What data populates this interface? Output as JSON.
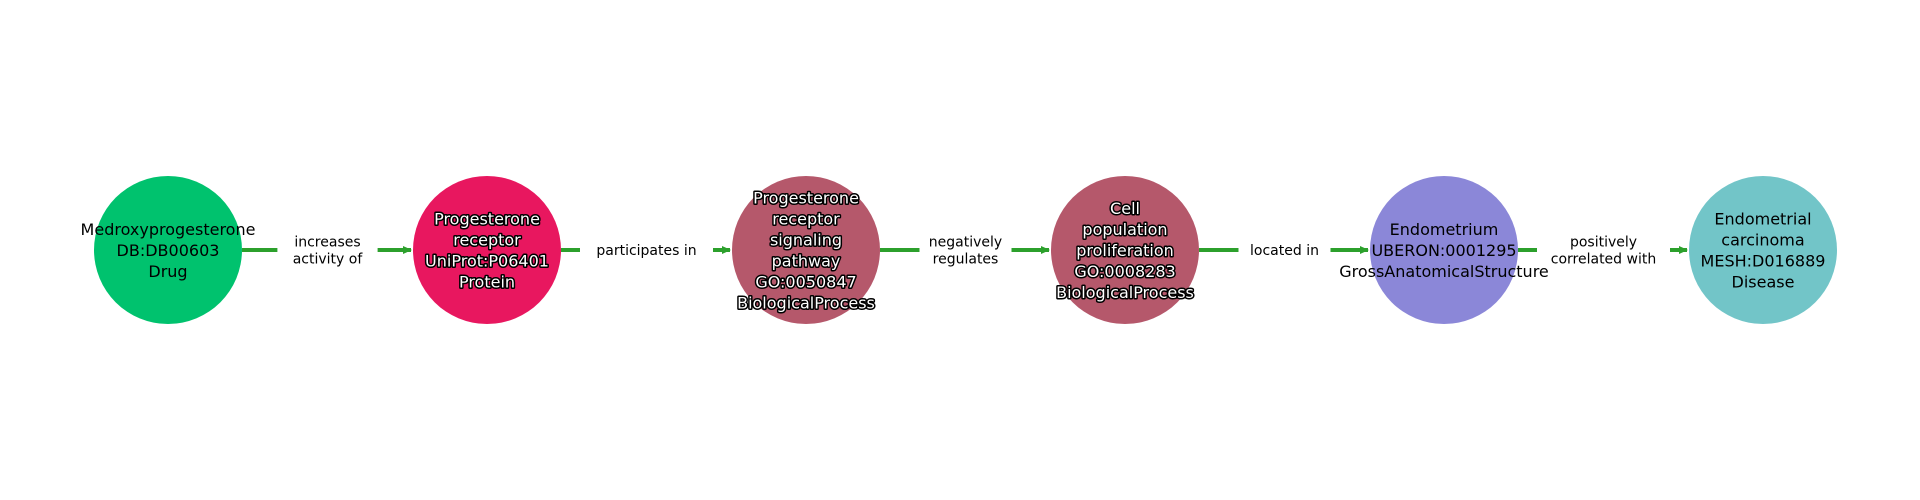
{
  "diagram": {
    "edge_color": "#2ca02c",
    "nodes": [
      {
        "id": "n1",
        "lines": [
          "Medroxyprogesterone",
          "DB:DB00603",
          "Drug"
        ],
        "color": "#00c26e",
        "text_color": "#000000",
        "outlined": false
      },
      {
        "id": "n2",
        "lines": [
          "Progesterone",
          "receptor",
          "UniProt:P06401",
          "Protein"
        ],
        "color": "#e8175f",
        "text_color": "#ffffff",
        "outlined": true
      },
      {
        "id": "n3",
        "lines": [
          "Progesterone",
          "receptor",
          "signaling",
          "pathway",
          "GO:0050847",
          "BiologicalProcess"
        ],
        "color": "#b5586b",
        "text_color": "#ffffff",
        "outlined": true
      },
      {
        "id": "n4",
        "lines": [
          "Cell",
          "population",
          "proliferation",
          "GO:0008283",
          "BiologicalProcess"
        ],
        "color": "#b5586b",
        "text_color": "#ffffff",
        "outlined": true
      },
      {
        "id": "n5",
        "lines": [
          "Endometrium",
          "UBERON:0001295",
          "GrossAnatomicalStructure"
        ],
        "color": "#8b87d8",
        "text_color": "#000000",
        "outlined": false
      },
      {
        "id": "n6",
        "lines": [
          "Endometrial",
          "carcinoma",
          "MESH:D016889",
          "Disease"
        ],
        "color": "#72c5c8",
        "text_color": "#000000",
        "outlined": false
      }
    ],
    "edges": [
      {
        "from": "n1",
        "to": "n2",
        "lines": [
          "increases",
          "activity of"
        ]
      },
      {
        "from": "n2",
        "to": "n3",
        "lines": [
          "participates in"
        ]
      },
      {
        "from": "n3",
        "to": "n4",
        "lines": [
          "negatively",
          "regulates"
        ]
      },
      {
        "from": "n4",
        "to": "n5",
        "lines": [
          "located in"
        ]
      },
      {
        "from": "n5",
        "to": "n6",
        "lines": [
          "positively",
          "correlated with"
        ]
      }
    ]
  }
}
